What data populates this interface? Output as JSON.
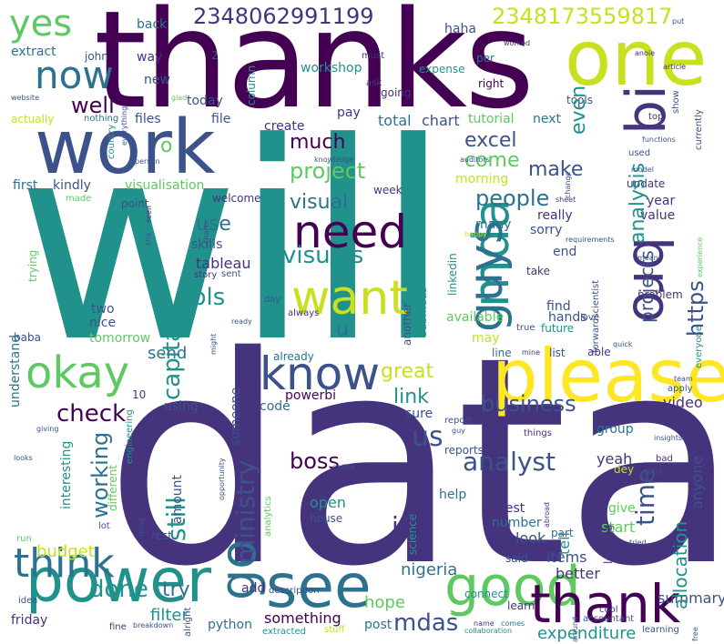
{
  "colors": {
    "purple_dark": "#440154",
    "indigo": "#3b528b",
    "navy": "#46337e",
    "teal": "#21918c",
    "teal_dark": "#2c728e",
    "green": "#5ec962",
    "lime": "#c8e020",
    "yellow": "#fde725",
    "background": "#ffffff"
  },
  "words": {
    "will": "will",
    "data": "data",
    "thanks": "thanks",
    "one": "one",
    "work": "work",
    "please": "please",
    "good": "good",
    "see": "see",
    "power": "power",
    "thank": "thank",
    "want": "want",
    "need": "need",
    "know": "know",
    "guys": "guys",
    "mda": "mda",
    "bro": "bro",
    "bi": "bi",
    "think": "think",
    "okay": "okay",
    "yes": "yes",
    "now": "now",
    "well": "well",
    "go": "go",
    "number_1": "2348062991199",
    "number_2": "2348173559817",
    "excel": "excel",
    "project": "project",
    "people": "people",
    "visual": "visual",
    "visuals": "visuals",
    "make": "make",
    "analysis": "analysis",
    "come": "come",
    "much": "much",
    "even": "even",
    "use": "use",
    "tableau": "tableau",
    "pls": "pls",
    "capital": "capital",
    "ministry": "ministry",
    "still": "still",
    "working": "working",
    "link": "link",
    "great": "great",
    "business": "business",
    "check": "check",
    "analyst": "analyst",
    "time": "time",
    "job": "job",
    "let": "let",
    "us": "us",
    "boss": "boss",
    "done": "done",
    "mdas": "mdas",
    "hope": "hope",
    "try": "try",
    "filter": "filter",
    "budget": "budget",
    "projects": "projects",
    "https": "https",
    "nigeria": "nigeria",
    "items": "items",
    "allocation": "allocation",
    "expenditure": "expenditure",
    "summary": "summary",
    "yeah": "yeah",
    "share": "share",
    "total": "total",
    "chart": "chart",
    "tutorial": "tutorial",
    "next": "next",
    "files": "files",
    "file": "file",
    "create": "create",
    "pay": "pay",
    "visualisation": "visualisation",
    "morning": "morning",
    "many": "many",
    "sorry": "sorry",
    "really": "really",
    "year": "year",
    "value": "value",
    "skills": "skills",
    "send": "send",
    "nice": "nice",
    "tomorrow": "tomorrow",
    "two": "two",
    "understand": "understand",
    "interesting": "interesting",
    "open": "open",
    "house": "house",
    "start": "start",
    "give": "give",
    "look": "look",
    "best": "best",
    "better": "better",
    "tell": "tell",
    "help": "help",
    "na": "na",
    "video": "video",
    "group": "group",
    "anyone": "anyone",
    "sure": "sure",
    "code": "code",
    "powerbi": "powerbi",
    "someone": "someone",
    "using": "using",
    "already": "already",
    "available": "available",
    "hands": "hands",
    "find": "find",
    "end": "end",
    "may": "may",
    "something": "something",
    "post": "post",
    "add": "add",
    "python": "python",
    "friday": "friday",
    "u": "u",
    "o": "o",
    "haha": "haha",
    "back": "back",
    "way": "way",
    "new": "new",
    "well_small": "well",
    "today": "today",
    "extract": "extract",
    "john": "john",
    "workshop": "workshop",
    "going": "going",
    "expense": "expense",
    "per": "per",
    "right": "right",
    "tools": "tools",
    "first": "first",
    "kindly": "kindly",
    "welcome": "welcome",
    "week": "week",
    "update": "update",
    "point": "point",
    "trying": "trying",
    "actually": "actually",
    "nothing": "nothing",
    "column": "column",
    "take": "take",
    "problem": "problem",
    "future": "future",
    "list": "list",
    "able": "able",
    "different": "different",
    "amount": "amount",
    "number": "number",
    "science": "science",
    "said": "said",
    "connect": "connect",
    "learn": "learn",
    "description": "description",
    "cool": "cool",
    "accountant": "accountant",
    "extracted": "extracted",
    "learning": "learning",
    "collaboration": "collaboration",
    "stuff": "stuff",
    "linkedin": "linkedin",
    "another": "another",
    "submdas": "submdas",
    "forwardscientist": "forwardscientist",
    "everyone": "everyone",
    "made": "made",
    "country": "country",
    "person": "person",
    "model": "model",
    "story": "story",
    "sent": "sent",
    "charts": "charts",
    "happy": "happy",
    "auditors": "auditors",
    "knowledge": "knowledge",
    "ask": "ask",
    "must": "must",
    "worked": "worked",
    "article": "article",
    "put": "put",
    "show": "show",
    "top": "top",
    "functions": "functions",
    "currently": "currently",
    "used": "used",
    "day": "day",
    "always": "always",
    "true": "true",
    "love": "love",
    "line": "line",
    "mine": "mine",
    "team": "team",
    "apply": "apply",
    "report": "report",
    "reports": "reports",
    "guy": "guy",
    "possible": "possible",
    "insights": "insights",
    "things": "things",
    "online": "online",
    "engineering": "engineering",
    "analytics": "analytics",
    "opportunity": "opportunity",
    "thing": "thing",
    "rest": "rest",
    "lot": "lot",
    "run": "run",
    "idea": "idea",
    "fine": "fine",
    "breakdown": "breakdown",
    "name": "name",
    "comes": "comes",
    "part": "part",
    "looking": "looking",
    "bad": "bad",
    "write": "write",
    "dey": "dey",
    "abroad": "abroad",
    "tried": "tried",
    "free": "free",
    "quick": "quick",
    "around": "around",
    "ten": "10",
    "baba": "baba",
    "giving": "giving",
    "looks": "looks",
    "might": "might",
    "ready": "ready",
    "sheet": "sheet",
    "change": "change",
    "experience": "experience",
    "seen": "seen",
    "alright": "alright",
    "sha": "sha",
    "two_small": "2",
    "mean": "mean",
    "requirements": "requirements",
    "anoie": "anoie",
    "glad": "glad",
    "website": "website",
    "everything": "everything",
    "sir": "sir"
  }
}
